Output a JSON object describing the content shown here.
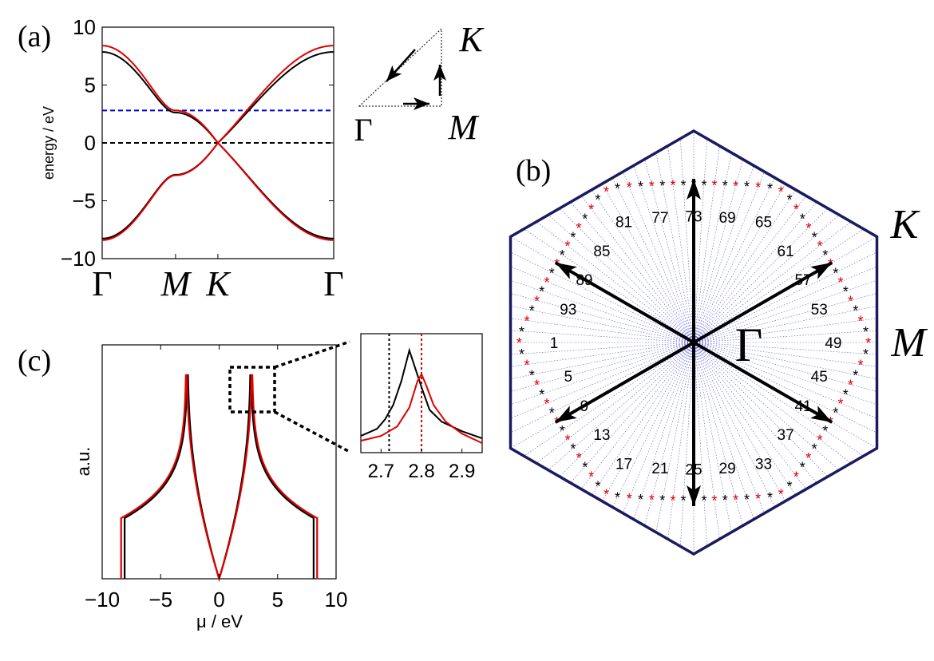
{
  "panels": {
    "a": {
      "tag": "(a)"
    },
    "b": {
      "tag": "(b)"
    },
    "c": {
      "tag": "(c)"
    }
  },
  "colors": {
    "black": "#000000",
    "red": "#e00000",
    "blue": "#0000dd",
    "navy": "#1a1a5e"
  },
  "chart_data": [
    {
      "id": "band-structure",
      "type": "line",
      "ylabel": "energy / eV",
      "ylim": [
        -10,
        10
      ],
      "yticks": [
        "10",
        "5",
        "0",
        "−5",
        "−10"
      ],
      "xticks": [
        "Γ",
        "M",
        "K",
        "Γ"
      ],
      "xticks_pos": [
        0,
        1,
        1.577,
        3.155
      ],
      "hlines": [
        {
          "y": 2.8,
          "color": "#0000dd",
          "style": "dashed"
        },
        {
          "y": 0,
          "color": "#000000",
          "style": "dashed"
        }
      ],
      "series": [
        {
          "color": "#000000",
          "t": 2.7,
          "s": 0.0,
          "shift": 0.0
        },
        {
          "color": "#e00000",
          "t": 2.8,
          "s": 0.0,
          "shift": 0.0
        }
      ],
      "bz_path": {
        "labels": [
          "K",
          "Γ",
          "M"
        ]
      }
    },
    {
      "id": "density-of-states",
      "type": "line",
      "xlabel": "μ / eV",
      "ylabel": "a.u.",
      "xlim": [
        -10,
        10
      ],
      "xticks": [
        "−10",
        "−5",
        "0",
        "5",
        "10"
      ],
      "xticks_val": [
        -10,
        -5,
        0,
        5,
        10
      ],
      "series": [
        {
          "color": "#000000",
          "t": 2.7
        },
        {
          "color": "#e00000",
          "t": 2.8
        }
      ],
      "inset": {
        "xlim": [
          2.65,
          2.95
        ],
        "xticks": [
          "2.7",
          "2.8",
          "2.9"
        ],
        "xticks_val": [
          2.7,
          2.8,
          2.9
        ],
        "vlines": [
          {
            "x": 2.72,
            "color": "#000000",
            "style": "dotted"
          },
          {
            "x": 2.8,
            "color": "#e00000",
            "style": "dotted"
          }
        ],
        "series": [
          {
            "color": "#000000",
            "x": [
              2.65,
              2.69,
              2.71,
              2.73,
              2.75,
              2.77,
              2.8,
              2.82,
              2.85,
              2.9,
              2.95
            ],
            "y": [
              0.14,
              0.2,
              0.28,
              0.4,
              0.6,
              0.86,
              0.55,
              0.36,
              0.26,
              0.18,
              0.12
            ]
          },
          {
            "color": "#e00000",
            "x": [
              2.65,
              2.7,
              2.74,
              2.77,
              2.79,
              2.8,
              2.81,
              2.83,
              2.86,
              2.9,
              2.95
            ],
            "y": [
              0.1,
              0.14,
              0.22,
              0.38,
              0.6,
              0.66,
              0.58,
              0.4,
              0.26,
              0.16,
              0.08
            ]
          }
        ]
      }
    },
    {
      "id": "brillouin-zone",
      "type": "scatter",
      "vertex_label": "K",
      "edge_label": "M",
      "center_label": "Γ",
      "labels": [
        "1",
        "5",
        "9",
        "13",
        "17",
        "21",
        "25",
        "29",
        "33",
        "37",
        "41",
        "45",
        "49",
        "53",
        "57",
        "61",
        "65",
        "69",
        "73",
        "77",
        "81",
        "85",
        "89",
        "93"
      ],
      "label_indices": [
        1,
        5,
        9,
        13,
        17,
        21,
        25,
        29,
        33,
        37,
        41,
        45,
        49,
        53,
        57,
        61,
        65,
        69,
        73,
        77,
        81,
        85,
        89,
        93
      ],
      "n_points": 96,
      "arrow_angles_deg": [
        90,
        30,
        -30,
        -90,
        -150,
        150
      ]
    }
  ]
}
